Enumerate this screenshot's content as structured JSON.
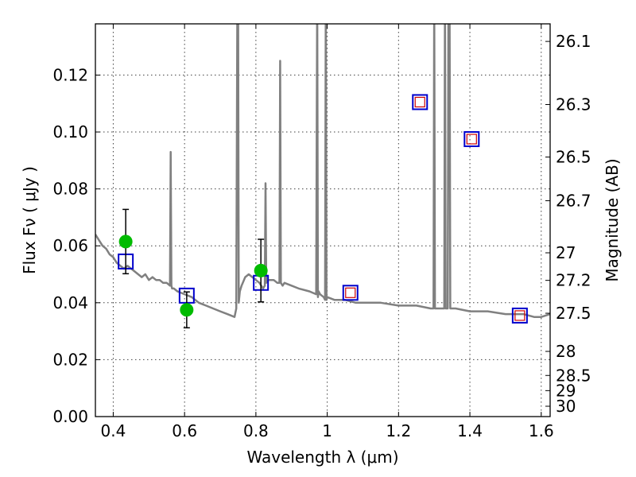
{
  "chart_data": {
    "type": "line",
    "xlabel": "Wavelength  λ (μm)",
    "ylabel": "Flux  Fν  ( μJy )",
    "y2label": "Magnitude (AB)",
    "xlim": [
      0.35,
      1.625
    ],
    "ylim": [
      0.0,
      0.138
    ],
    "x_ticks": [
      "0.4",
      "0.6",
      "0.8",
      "1",
      "1.2",
      "1.4",
      "1.6"
    ],
    "x_tick_values": [
      0.4,
      0.6,
      0.8,
      1.0,
      1.2,
      1.4,
      1.6
    ],
    "y_ticks": [
      "0.00",
      "0.02",
      "0.04",
      "0.06",
      "0.08",
      "0.10",
      "0.12"
    ],
    "y_tick_values": [
      0.0,
      0.02,
      0.04,
      0.06,
      0.08,
      0.1,
      0.12
    ],
    "y2_ticks": [
      "26.1",
      "26.3",
      "26.5",
      "26.7",
      "27",
      "27.2",
      "27.5",
      "28",
      "28.5",
      "29",
      "30"
    ],
    "y2_tick_values": [
      26.1,
      26.3,
      26.5,
      26.7,
      27.0,
      27.2,
      27.5,
      28.0,
      28.5,
      29.0,
      30.0
    ],
    "grid": true,
    "colors": {
      "spectrum": "#808080",
      "observed": "#00bb00",
      "model_box": "#0000cc",
      "model_inner": "#cc0000"
    },
    "series": [
      {
        "kind": "spectrum",
        "x": [
          0.35,
          0.36,
          0.37,
          0.38,
          0.39,
          0.4,
          0.41,
          0.42,
          0.43,
          0.44,
          0.45,
          0.46,
          0.47,
          0.48,
          0.49,
          0.5,
          0.51,
          0.52,
          0.53,
          0.54,
          0.55,
          0.559,
          0.561,
          0.563,
          0.565,
          0.57,
          0.58,
          0.6,
          0.62,
          0.64,
          0.66,
          0.68,
          0.7,
          0.72,
          0.74,
          0.745,
          0.748,
          0.75,
          0.752,
          0.755,
          0.76,
          0.77,
          0.78,
          0.79,
          0.8,
          0.81,
          0.82,
          0.825,
          0.827,
          0.829,
          0.835,
          0.85,
          0.86,
          0.866,
          0.868,
          0.87,
          0.875,
          0.88,
          0.9,
          0.92,
          0.95,
          0.969,
          0.972,
          0.974,
          0.976,
          0.98,
          0.99,
          0.994,
          0.996,
          0.998,
          1.0,
          1.02,
          1.05,
          1.08,
          1.1,
          1.15,
          1.2,
          1.25,
          1.29,
          1.298,
          1.3,
          1.302,
          1.31,
          1.32,
          1.328,
          1.33,
          1.332,
          1.338,
          1.34,
          1.343,
          1.345,
          1.36,
          1.4,
          1.45,
          1.5,
          1.55,
          1.58,
          1.6,
          1.625
        ],
        "y": [
          0.064,
          0.062,
          0.06,
          0.059,
          0.057,
          0.056,
          0.054,
          0.053,
          0.052,
          0.053,
          0.052,
          0.051,
          0.05,
          0.049,
          0.05,
          0.048,
          0.049,
          0.048,
          0.048,
          0.047,
          0.047,
          0.046,
          0.093,
          0.046,
          0.045,
          0.045,
          0.044,
          0.043,
          0.042,
          0.04,
          0.039,
          0.038,
          0.037,
          0.036,
          0.035,
          0.038,
          0.15,
          0.15,
          0.04,
          0.044,
          0.046,
          0.049,
          0.05,
          0.049,
          0.048,
          0.047,
          0.045,
          0.046,
          0.082,
          0.047,
          0.048,
          0.048,
          0.047,
          0.047,
          0.125,
          0.047,
          0.046,
          0.047,
          0.046,
          0.045,
          0.044,
          0.043,
          0.15,
          0.042,
          0.044,
          0.043,
          0.042,
          0.041,
          0.15,
          0.041,
          0.042,
          0.041,
          0.041,
          0.04,
          0.04,
          0.04,
          0.039,
          0.039,
          0.038,
          0.038,
          0.15,
          0.038,
          0.038,
          0.038,
          0.038,
          0.15,
          0.038,
          0.038,
          0.15,
          0.15,
          0.038,
          0.038,
          0.037,
          0.037,
          0.036,
          0.036,
          0.035,
          0.035,
          0.036
        ]
      },
      {
        "kind": "observed",
        "x": [
          0.435,
          0.606,
          0.814
        ],
        "y": [
          0.0615,
          0.0375,
          0.0513
        ],
        "yerr": [
          0.0113,
          0.0063,
          0.011
        ]
      },
      {
        "kind": "model_box",
        "x": [
          0.435,
          0.606,
          0.814,
          1.065,
          1.26,
          1.405,
          1.54
        ],
        "y": [
          0.0545,
          0.0425,
          0.047,
          0.0435,
          0.1105,
          0.0975,
          0.0355
        ]
      },
      {
        "kind": "model_inner",
        "x": [
          1.065,
          1.26,
          1.405,
          1.54
        ],
        "y": [
          0.0435,
          0.1105,
          0.0975,
          0.0355
        ]
      }
    ]
  }
}
